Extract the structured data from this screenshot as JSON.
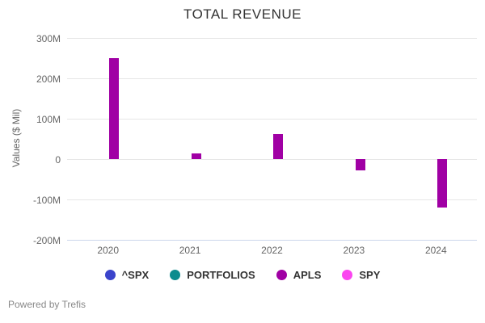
{
  "title": "TOTAL REVENUE",
  "footer": {
    "text": "Powered by Trefis"
  },
  "colors": {
    "grid": "#e6e6e6",
    "x_axis_line": "#ccd6eb",
    "title_text": "#333333",
    "tick_text": "#666666",
    "legend_text": "#333333",
    "footer_text": "#888888"
  },
  "chart_data": {
    "type": "bar",
    "title": "TOTAL REVENUE",
    "xlabel": "",
    "ylabel": "Values ($ Mil)",
    "categories": [
      "2020",
      "2021",
      "2022",
      "2023",
      "2024"
    ],
    "series": [
      {
        "name": "^SPX",
        "color": "#3b44cb",
        "values": []
      },
      {
        "name": "PORTFOLIOS",
        "color": "#0d8c8e",
        "values": []
      },
      {
        "name": "APLS",
        "color": "#a000a4",
        "values": [
          250,
          14,
          62,
          -27,
          -119
        ]
      },
      {
        "name": "SPY",
        "color": "#fb45f0",
        "values": []
      }
    ],
    "ylim": [
      -200,
      300
    ],
    "tick_values": [
      300,
      200,
      100,
      0,
      -100,
      -200
    ],
    "tick_labels": [
      "300M",
      "200M",
      "100M",
      "0",
      "-100M",
      "-200M"
    ],
    "grid": true,
    "legend_position": "bottom"
  }
}
